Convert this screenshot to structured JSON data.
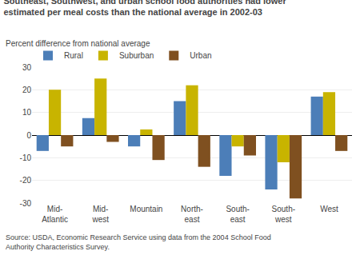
{
  "chart_data": {
    "type": "bar",
    "title": "Southeast, Southwest, and urban school food authorities had lower\nestimated per meal costs than the national average in 2002-03",
    "ylabel": "Percent difference from national average",
    "annotations": [
      "Source: USDA, Economic Research Service using data from the 2004 School Food\nAuthority Characteristics Survey."
    ],
    "categories": [
      "Mid-\nAtlantic",
      "Mid-\nwest",
      "Mountain",
      "North-\neast",
      "South-\neast",
      "South-\nwest",
      "West"
    ],
    "series": [
      {
        "name": "Rural",
        "color": "#4c7eb8",
        "values": [
          -7,
          7.5,
          -5,
          15,
          -18,
          -24,
          17
        ]
      },
      {
        "name": "Suburban",
        "color": "#c8b400",
        "values": [
          20,
          25,
          2.5,
          22,
          -5,
          -12,
          19
        ]
      },
      {
        "name": "Urban",
        "color": "#7f5020",
        "values": [
          -5,
          -3,
          -11,
          -14,
          -9,
          -28,
          -7
        ]
      }
    ],
    "ylim": [
      -30,
      30
    ],
    "yticks": [
      -30,
      -20,
      -10,
      0,
      10,
      20,
      30
    ],
    "grid": true,
    "legend": "upper left"
  }
}
